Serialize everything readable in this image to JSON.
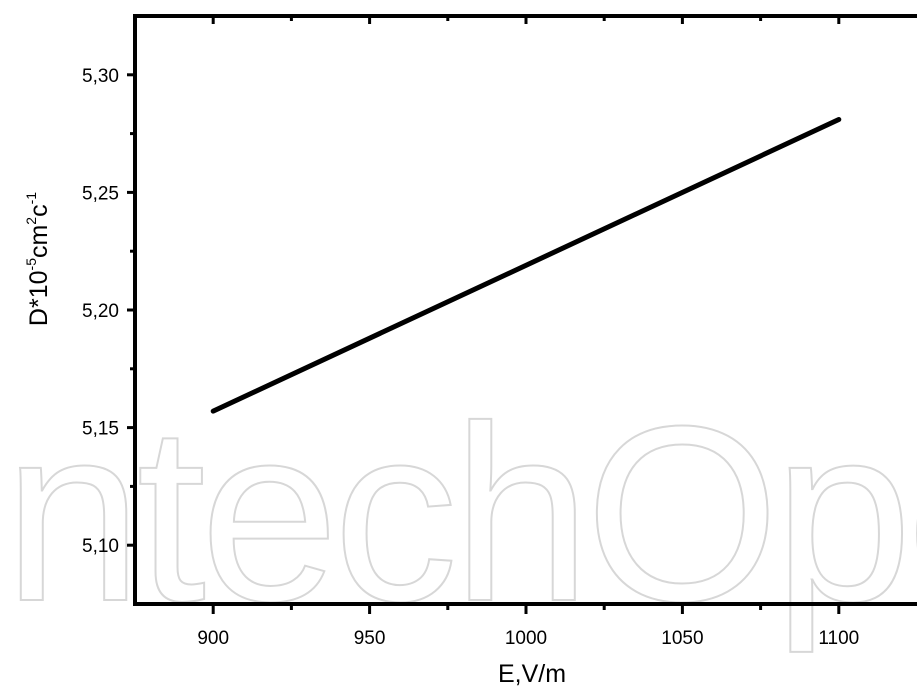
{
  "watermark": {
    "text": "IntechOpen"
  },
  "chart_data": {
    "type": "line",
    "xlabel": "E,V/m",
    "ylabel": {
      "base": "D*10",
      "exp1": "-5",
      "mid": "cm",
      "exp2": "2",
      "mid2": "c",
      "exp3": "-1"
    },
    "xlim": [
      875,
      1125
    ],
    "ylim": [
      5.075,
      5.325
    ],
    "x_ticks": [
      {
        "value": 900,
        "label": "900"
      },
      {
        "value": 950,
        "label": "950"
      },
      {
        "value": 1000,
        "label": "1000"
      },
      {
        "value": 1050,
        "label": "1050"
      },
      {
        "value": 1100,
        "label": "1100"
      }
    ],
    "y_ticks": [
      {
        "value": 5.1,
        "label": "5,10"
      },
      {
        "value": 5.15,
        "label": "5,15"
      },
      {
        "value": 5.2,
        "label": "5,20"
      },
      {
        "value": 5.25,
        "label": "5,25"
      },
      {
        "value": 5.3,
        "label": "5,30"
      }
    ],
    "x_minor_ticks": [
      925,
      975,
      1025,
      1075
    ],
    "y_minor_ticks": [
      5.125,
      5.175,
      5.225,
      5.275
    ],
    "series": [
      {
        "x": [
          900,
          1100
        ],
        "y": [
          5.157,
          5.281
        ],
        "color": "#000000"
      }
    ],
    "grid": false,
    "legend": "none"
  }
}
